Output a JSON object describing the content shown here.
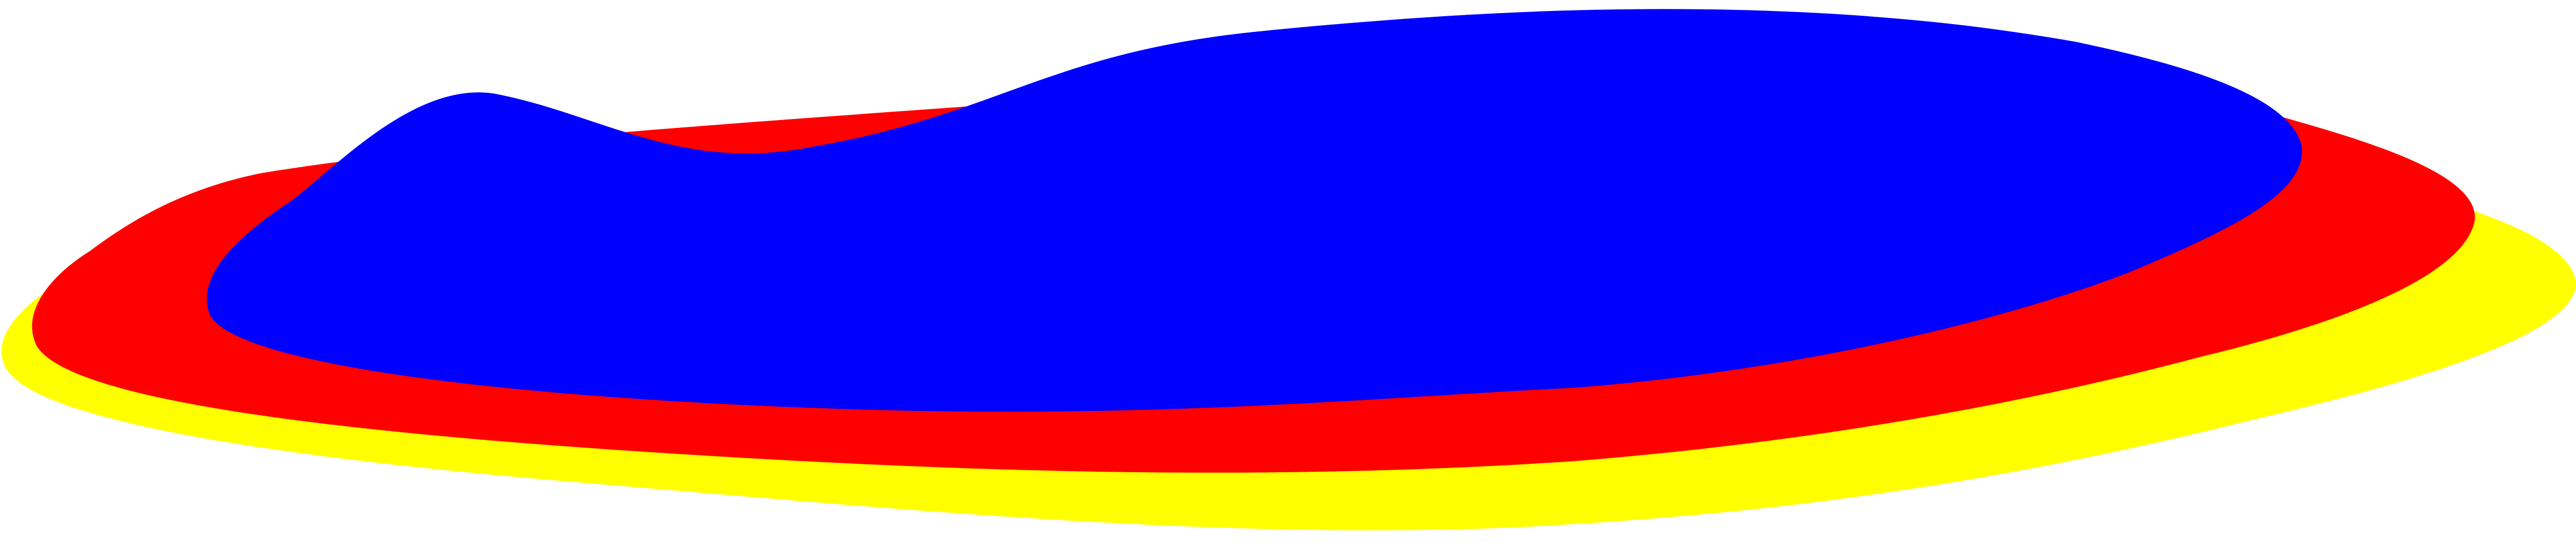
{
  "layers": [
    {
      "name": "yellow-blob",
      "color": "#FFFF00"
    },
    {
      "name": "red-blob",
      "color": "#FF0000"
    },
    {
      "name": "blue-blob",
      "color": "#0000FF"
    }
  ],
  "background": "#FFFFFF"
}
